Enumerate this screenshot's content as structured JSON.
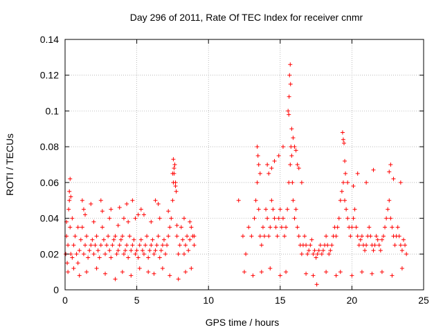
{
  "chart_data": {
    "type": "scatter",
    "title": "Day 296 of 2011, Rate Of TEC Index for receiver cnmr",
    "xlabel": "GPS time / hours",
    "ylabel": "ROTI / TECUs",
    "xlim": [
      0,
      25
    ],
    "ylim": [
      0,
      0.14
    ],
    "xticks": [
      0,
      5,
      10,
      15,
      20,
      25
    ],
    "yticks": [
      0,
      0.02,
      0.04,
      0.06,
      0.08,
      0.1,
      0.12,
      0.14
    ],
    "xtick_labels": [
      "0",
      "5",
      "10",
      "15",
      "20",
      "25"
    ],
    "ytick_labels": [
      "0",
      "0.02",
      "0.04",
      "0.06",
      "0.08",
      "0.1",
      "0.12",
      "0.14"
    ],
    "grid": true,
    "marker": "+",
    "color": "#ff0000",
    "series": [
      {
        "name": "",
        "x": [
          0.05,
          0.1,
          0.15,
          0.2,
          0.25,
          0.3,
          0.35,
          0.4,
          0.5,
          0.6,
          0.7,
          0.8,
          0.9,
          1.0,
          1.1,
          1.2,
          1.3,
          1.4,
          1.5,
          1.6,
          1.7,
          1.8,
          1.9,
          2.0,
          2.1,
          2.2,
          2.3,
          2.4,
          2.5,
          2.6,
          2.7,
          2.8,
          2.9,
          3.0,
          3.1,
          3.2,
          3.3,
          3.4,
          3.5,
          3.6,
          3.7,
          3.8,
          3.9,
          4.0,
          4.1,
          4.2,
          4.3,
          4.4,
          4.5,
          4.6,
          4.7,
          4.8,
          4.9,
          5.0,
          5.1,
          5.2,
          5.3,
          5.4,
          5.5,
          5.6,
          5.7,
          5.8,
          5.9,
          6.0,
          6.1,
          6.2,
          6.3,
          6.4,
          6.5,
          6.6,
          6.7,
          6.8,
          6.9,
          7.0,
          7.1,
          7.2,
          7.3,
          7.4,
          7.5,
          7.55,
          7.6,
          7.65,
          7.7,
          7.8,
          7.9,
          8.0,
          8.1,
          8.2,
          8.3,
          8.4,
          8.5,
          8.6,
          8.7,
          8.8,
          8.9,
          9.0,
          0.3,
          0.35,
          0.4,
          1.2,
          1.3,
          1.8,
          2.5,
          3.2,
          3.8,
          4.1,
          4.3,
          4.7,
          5.1,
          5.3,
          6.3,
          6.5,
          7.5,
          7.55,
          7.6,
          7.65,
          7.7,
          7.75,
          0.2,
          0.6,
          1.0,
          1.5,
          2.2,
          2.8,
          3.5,
          4.0,
          4.6,
          5.2,
          5.8,
          6.2,
          6.8,
          7.3,
          7.9,
          8.4,
          8.8,
          0.1,
          0.5,
          0.9,
          1.4,
          2.0,
          2.6,
          3.1,
          3.7,
          4.4,
          4.9,
          5.5,
          6.0,
          6.6,
          7.2,
          7.8,
          8.3,
          8.7,
          9.0
        ],
        "y": [
          0.02,
          0.03,
          0.015,
          0.025,
          0.045,
          0.05,
          0.035,
          0.02,
          0.018,
          0.025,
          0.03,
          0.02,
          0.015,
          0.022,
          0.028,
          0.035,
          0.02,
          0.025,
          0.03,
          0.018,
          0.022,
          0.025,
          0.028,
          0.02,
          0.025,
          0.03,
          0.022,
          0.018,
          0.025,
          0.035,
          0.028,
          0.02,
          0.025,
          0.03,
          0.022,
          0.018,
          0.025,
          0.028,
          0.03,
          0.02,
          0.022,
          0.025,
          0.028,
          0.03,
          0.02,
          0.022,
          0.025,
          0.018,
          0.03,
          0.022,
          0.025,
          0.028,
          0.02,
          0.022,
          0.018,
          0.025,
          0.028,
          0.022,
          0.02,
          0.025,
          0.03,
          0.018,
          0.022,
          0.025,
          0.028,
          0.02,
          0.022,
          0.025,
          0.03,
          0.018,
          0.022,
          0.025,
          0.028,
          0.02,
          0.025,
          0.03,
          0.035,
          0.04,
          0.05,
          0.06,
          0.065,
          0.07,
          0.058,
          0.03,
          0.02,
          0.025,
          0.035,
          0.028,
          0.02,
          0.025,
          0.03,
          0.022,
          0.028,
          0.035,
          0.03,
          0.025,
          0.055,
          0.062,
          0.052,
          0.05,
          0.045,
          0.048,
          0.05,
          0.045,
          0.046,
          0.04,
          0.048,
          0.05,
          0.042,
          0.045,
          0.05,
          0.048,
          0.065,
          0.073,
          0.068,
          0.07,
          0.06,
          0.055,
          0.01,
          0.012,
          0.008,
          0.01,
          0.012,
          0.009,
          0.006,
          0.01,
          0.008,
          0.012,
          0.01,
          0.009,
          0.012,
          0.008,
          0.006,
          0.01,
          0.012,
          0.038,
          0.04,
          0.035,
          0.042,
          0.038,
          0.044,
          0.04,
          0.036,
          0.038,
          0.04,
          0.042,
          0.038,
          0.04,
          0.044,
          0.036,
          0.04,
          0.038,
          0.03
        ]
      },
      {
        "name": "",
        "x": [
          12.1,
          12.4,
          12.6,
          12.8,
          13.0,
          13.2,
          13.3,
          13.4,
          13.5,
          13.6,
          13.7,
          13.8,
          13.9,
          14.0,
          14.1,
          14.2,
          14.3,
          14.4,
          14.5,
          14.6,
          14.7,
          14.8,
          14.9,
          15.0,
          15.1,
          15.2,
          15.3,
          15.4,
          15.5,
          15.6,
          15.7,
          15.75,
          15.8,
          15.85,
          15.9,
          16.0,
          16.1,
          16.2,
          16.3,
          16.4,
          16.5,
          16.6,
          16.7,
          16.8,
          16.9,
          17.0,
          17.1,
          17.2,
          17.3,
          17.4,
          17.5,
          17.6,
          17.7,
          17.8,
          17.9,
          18.0,
          18.1,
          18.2,
          18.3,
          18.4,
          18.5,
          18.6,
          18.7,
          18.8,
          18.9,
          19.0,
          19.1,
          19.2,
          19.3,
          19.4,
          19.5,
          19.6,
          19.7,
          19.8,
          19.9,
          20.0,
          20.1,
          20.2,
          20.3,
          20.4,
          20.5,
          20.6,
          20.7,
          20.8,
          20.9,
          21.0,
          21.1,
          21.2,
          21.3,
          21.4,
          21.5,
          21.6,
          21.7,
          21.8,
          21.9,
          22.0,
          22.1,
          22.2,
          22.3,
          22.4,
          22.5,
          22.6,
          22.7,
          22.8,
          22.9,
          23.0,
          23.1,
          23.2,
          23.3,
          23.4,
          23.5,
          23.6,
          23.7,
          23.8,
          13.4,
          13.45,
          13.5,
          13.6,
          14.1,
          14.2,
          14.4,
          14.6,
          14.9,
          15.2,
          15.55,
          15.6,
          15.62,
          15.65,
          15.7,
          15.72,
          15.8,
          15.9,
          16.0,
          16.1,
          16.2,
          16.3,
          16.5,
          19.35,
          19.4,
          19.45,
          19.5,
          19.55,
          19.7,
          20.1,
          20.4,
          21.0,
          21.5,
          22.6,
          22.7,
          22.9,
          23.4,
          12.5,
          13.1,
          13.7,
          14.3,
          15.0,
          15.4,
          16.8,
          17.3,
          17.55,
          18.2,
          18.9,
          19.2,
          20.0,
          20.7,
          21.4,
          22.1,
          22.8,
          23.5
        ],
        "y": [
          0.05,
          0.03,
          0.02,
          0.035,
          0.03,
          0.04,
          0.05,
          0.06,
          0.045,
          0.03,
          0.025,
          0.035,
          0.03,
          0.045,
          0.04,
          0.03,
          0.035,
          0.05,
          0.045,
          0.04,
          0.035,
          0.03,
          0.04,
          0.045,
          0.035,
          0.04,
          0.03,
          0.035,
          0.045,
          0.06,
          0.07,
          0.08,
          0.075,
          0.06,
          0.05,
          0.04,
          0.045,
          0.035,
          0.03,
          0.025,
          0.02,
          0.025,
          0.03,
          0.025,
          0.02,
          0.022,
          0.025,
          0.028,
          0.02,
          0.022,
          0.018,
          0.02,
          0.022,
          0.025,
          0.02,
          0.022,
          0.025,
          0.03,
          0.025,
          0.02,
          0.022,
          0.025,
          0.03,
          0.035,
          0.03,
          0.035,
          0.04,
          0.05,
          0.055,
          0.06,
          0.05,
          0.045,
          0.04,
          0.035,
          0.03,
          0.035,
          0.04,
          0.045,
          0.035,
          0.03,
          0.025,
          0.028,
          0.03,
          0.025,
          0.022,
          0.025,
          0.03,
          0.035,
          0.03,
          0.025,
          0.022,
          0.025,
          0.03,
          0.028,
          0.025,
          0.022,
          0.028,
          0.03,
          0.035,
          0.04,
          0.045,
          0.05,
          0.04,
          0.035,
          0.03,
          0.025,
          0.03,
          0.035,
          0.03,
          0.025,
          0.022,
          0.028,
          0.025,
          0.02,
          0.08,
          0.075,
          0.07,
          0.065,
          0.07,
          0.065,
          0.068,
          0.072,
          0.075,
          0.08,
          0.1,
          0.098,
          0.108,
          0.12,
          0.126,
          0.115,
          0.09,
          0.085,
          0.08,
          0.078,
          0.07,
          0.068,
          0.06,
          0.088,
          0.084,
          0.082,
          0.072,
          0.065,
          0.06,
          0.058,
          0.065,
          0.06,
          0.067,
          0.066,
          0.07,
          0.062,
          0.06,
          0.01,
          0.008,
          0.01,
          0.012,
          0.008,
          0.01,
          0.009,
          0.008,
          0.003,
          0.01,
          0.008,
          0.01,
          0.008,
          0.01,
          0.009,
          0.01,
          0.008,
          0.012
        ]
      }
    ]
  }
}
